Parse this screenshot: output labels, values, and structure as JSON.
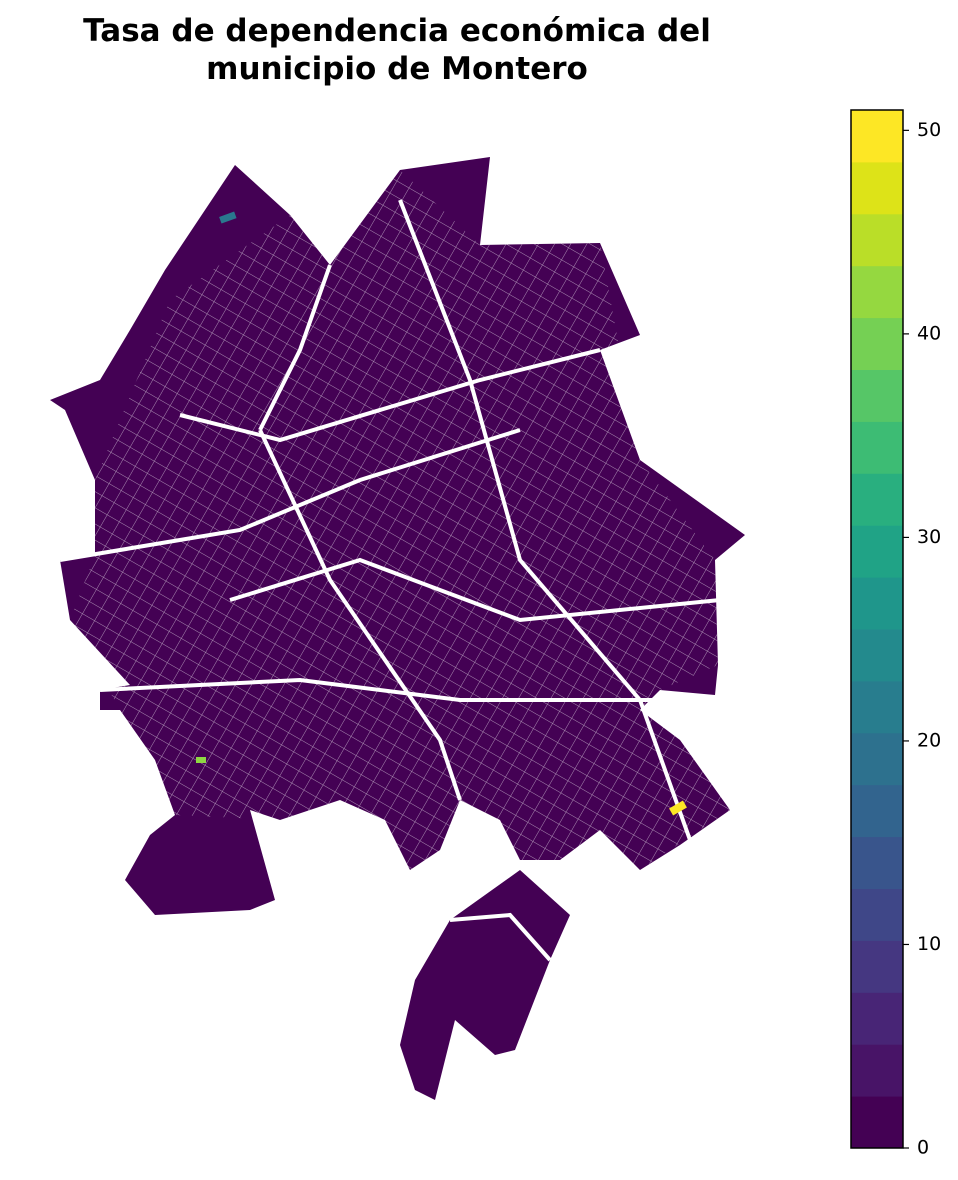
{
  "chart_data": {
    "type": "choropleth",
    "title": "Tasa de dependencia económica del\nmunicipio de Montero",
    "colorbar": {
      "ylim": [
        0,
        51
      ],
      "yticks": [
        0,
        10,
        20,
        30,
        40,
        50
      ],
      "colors": [
        "#440154",
        "#481467",
        "#482576",
        "#453781",
        "#3f4788",
        "#39558c",
        "#32648e",
        "#2d718e",
        "#287d8e",
        "#238a8d",
        "#1f968b",
        "#20a386",
        "#29af7f",
        "#3dbc74",
        "#56c667",
        "#75d054",
        "#95d840",
        "#bade28",
        "#dde318",
        "#fde725"
      ]
    },
    "base_color": "#440154"
  }
}
